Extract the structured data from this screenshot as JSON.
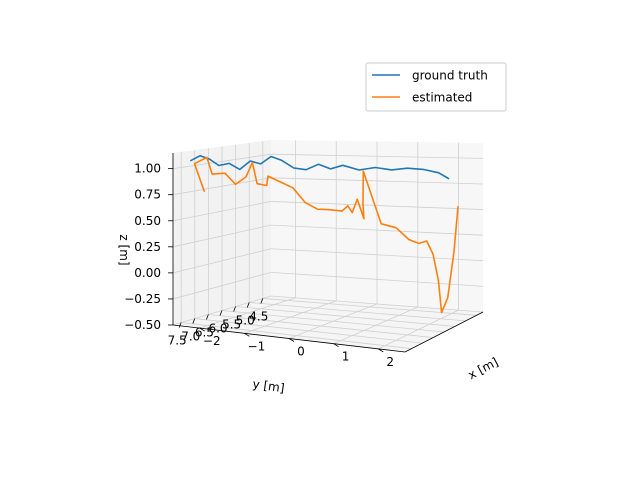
{
  "chart_data": {
    "type": "line",
    "projection": "3d",
    "grid": true,
    "legend_position": "top-right",
    "axes": {
      "x": {
        "label": "x [m]",
        "ticks": [
          -2,
          -1,
          0,
          1,
          2
        ],
        "tick_labels": [
          "−2",
          "−1",
          "0",
          "1",
          "2"
        ],
        "range": [
          -2.6,
          2.6
        ]
      },
      "y": {
        "label": "y [m]",
        "ticks": [
          7.5,
          7.0,
          6.5,
          6.0,
          5.5,
          5.0,
          4.5
        ],
        "tick_labels": [
          "7.5",
          "7.0",
          "6.5",
          "6.0",
          "5.5",
          "5.0",
          "4.5"
        ],
        "range": [
          4.2,
          7.8
        ]
      },
      "z": {
        "label": "z [m]",
        "ticks": [
          1.0,
          0.75,
          0.5,
          0.25,
          0.0,
          -0.25,
          -0.5
        ],
        "tick_labels": [
          "1.00",
          "0.75",
          "0.50",
          "0.25",
          "0.00",
          "−0.25",
          "−0.50"
        ],
        "range": [
          -0.5,
          1.15
        ]
      }
    },
    "series": [
      {
        "name": "ground truth",
        "color": "#1f77b4",
        "points": [
          {
            "x": -2.35,
            "y": 7.55,
            "z": 1.08
          },
          {
            "x": -2.2,
            "y": 7.45,
            "z": 1.13
          },
          {
            "x": -2.05,
            "y": 7.35,
            "z": 1.1
          },
          {
            "x": -1.9,
            "y": 7.25,
            "z": 1.04
          },
          {
            "x": -1.75,
            "y": 7.1,
            "z": 1.06
          },
          {
            "x": -1.6,
            "y": 6.95,
            "z": 1.0
          },
          {
            "x": -1.45,
            "y": 6.8,
            "z": 1.08
          },
          {
            "x": -1.3,
            "y": 6.65,
            "z": 1.05
          },
          {
            "x": -1.15,
            "y": 6.5,
            "z": 1.12
          },
          {
            "x": -1.0,
            "y": 6.35,
            "z": 1.08
          },
          {
            "x": -0.8,
            "y": 6.2,
            "z": 1.0
          },
          {
            "x": -0.6,
            "y": 6.05,
            "z": 0.98
          },
          {
            "x": -0.4,
            "y": 5.9,
            "z": 1.03
          },
          {
            "x": -0.2,
            "y": 5.75,
            "z": 0.98
          },
          {
            "x": 0.0,
            "y": 5.6,
            "z": 1.01
          },
          {
            "x": 0.3,
            "y": 5.45,
            "z": 0.96
          },
          {
            "x": 0.6,
            "y": 5.3,
            "z": 0.98
          },
          {
            "x": 0.9,
            "y": 5.15,
            "z": 0.95
          },
          {
            "x": 1.2,
            "y": 5.0,
            "z": 0.96
          },
          {
            "x": 1.5,
            "y": 4.85,
            "z": 0.94
          },
          {
            "x": 1.8,
            "y": 4.72,
            "z": 0.9
          },
          {
            "x": 2.0,
            "y": 4.65,
            "z": 0.84
          }
        ]
      },
      {
        "name": "estimated",
        "color": "#ff7f0e",
        "points": [
          {
            "x": -2.2,
            "y": 7.3,
            "z": 0.78
          },
          {
            "x": -2.3,
            "y": 7.5,
            "z": 1.05
          },
          {
            "x": -2.05,
            "y": 7.45,
            "z": 1.12
          },
          {
            "x": -2.05,
            "y": 7.25,
            "z": 0.95
          },
          {
            "x": -1.85,
            "y": 7.1,
            "z": 0.96
          },
          {
            "x": -1.7,
            "y": 6.95,
            "z": 0.85
          },
          {
            "x": -1.55,
            "y": 6.8,
            "z": 0.92
          },
          {
            "x": -1.45,
            "y": 6.72,
            "z": 1.06
          },
          {
            "x": -1.4,
            "y": 6.62,
            "z": 0.85
          },
          {
            "x": -1.25,
            "y": 6.5,
            "z": 0.83
          },
          {
            "x": -1.25,
            "y": 6.45,
            "z": 0.92
          },
          {
            "x": -1.05,
            "y": 6.3,
            "z": 0.86
          },
          {
            "x": -0.85,
            "y": 6.15,
            "z": 0.8
          },
          {
            "x": -0.65,
            "y": 6.0,
            "z": 0.65
          },
          {
            "x": -0.45,
            "y": 5.85,
            "z": 0.58
          },
          {
            "x": -0.25,
            "y": 5.7,
            "z": 0.57
          },
          {
            "x": -0.05,
            "y": 5.55,
            "z": 0.55
          },
          {
            "x": 0.05,
            "y": 5.48,
            "z": 0.6
          },
          {
            "x": 0.12,
            "y": 5.42,
            "z": 0.53
          },
          {
            "x": 0.2,
            "y": 5.35,
            "z": 0.66
          },
          {
            "x": 0.3,
            "y": 5.25,
            "z": 0.46
          },
          {
            "x": 0.25,
            "y": 5.2,
            "z": 0.6
          },
          {
            "x": 0.2,
            "y": 5.1,
            "z": 0.92
          },
          {
            "x": 0.6,
            "y": 5.05,
            "z": 0.4
          },
          {
            "x": 0.9,
            "y": 4.95,
            "z": 0.36
          },
          {
            "x": 1.15,
            "y": 4.85,
            "z": 0.24
          },
          {
            "x": 1.35,
            "y": 4.78,
            "z": 0.2
          },
          {
            "x": 1.5,
            "y": 4.7,
            "z": 0.22
          },
          {
            "x": 1.6,
            "y": 4.6,
            "z": 0.08
          },
          {
            "x": 1.7,
            "y": 4.55,
            "z": -0.18
          },
          {
            "x": 1.75,
            "y": 4.5,
            "z": -0.5
          },
          {
            "x": 1.9,
            "y": 4.5,
            "z": -0.35
          },
          {
            "x": 2.05,
            "y": 4.5,
            "z": 0.1
          },
          {
            "x": 2.15,
            "y": 4.5,
            "z": 0.55
          }
        ]
      }
    ]
  }
}
